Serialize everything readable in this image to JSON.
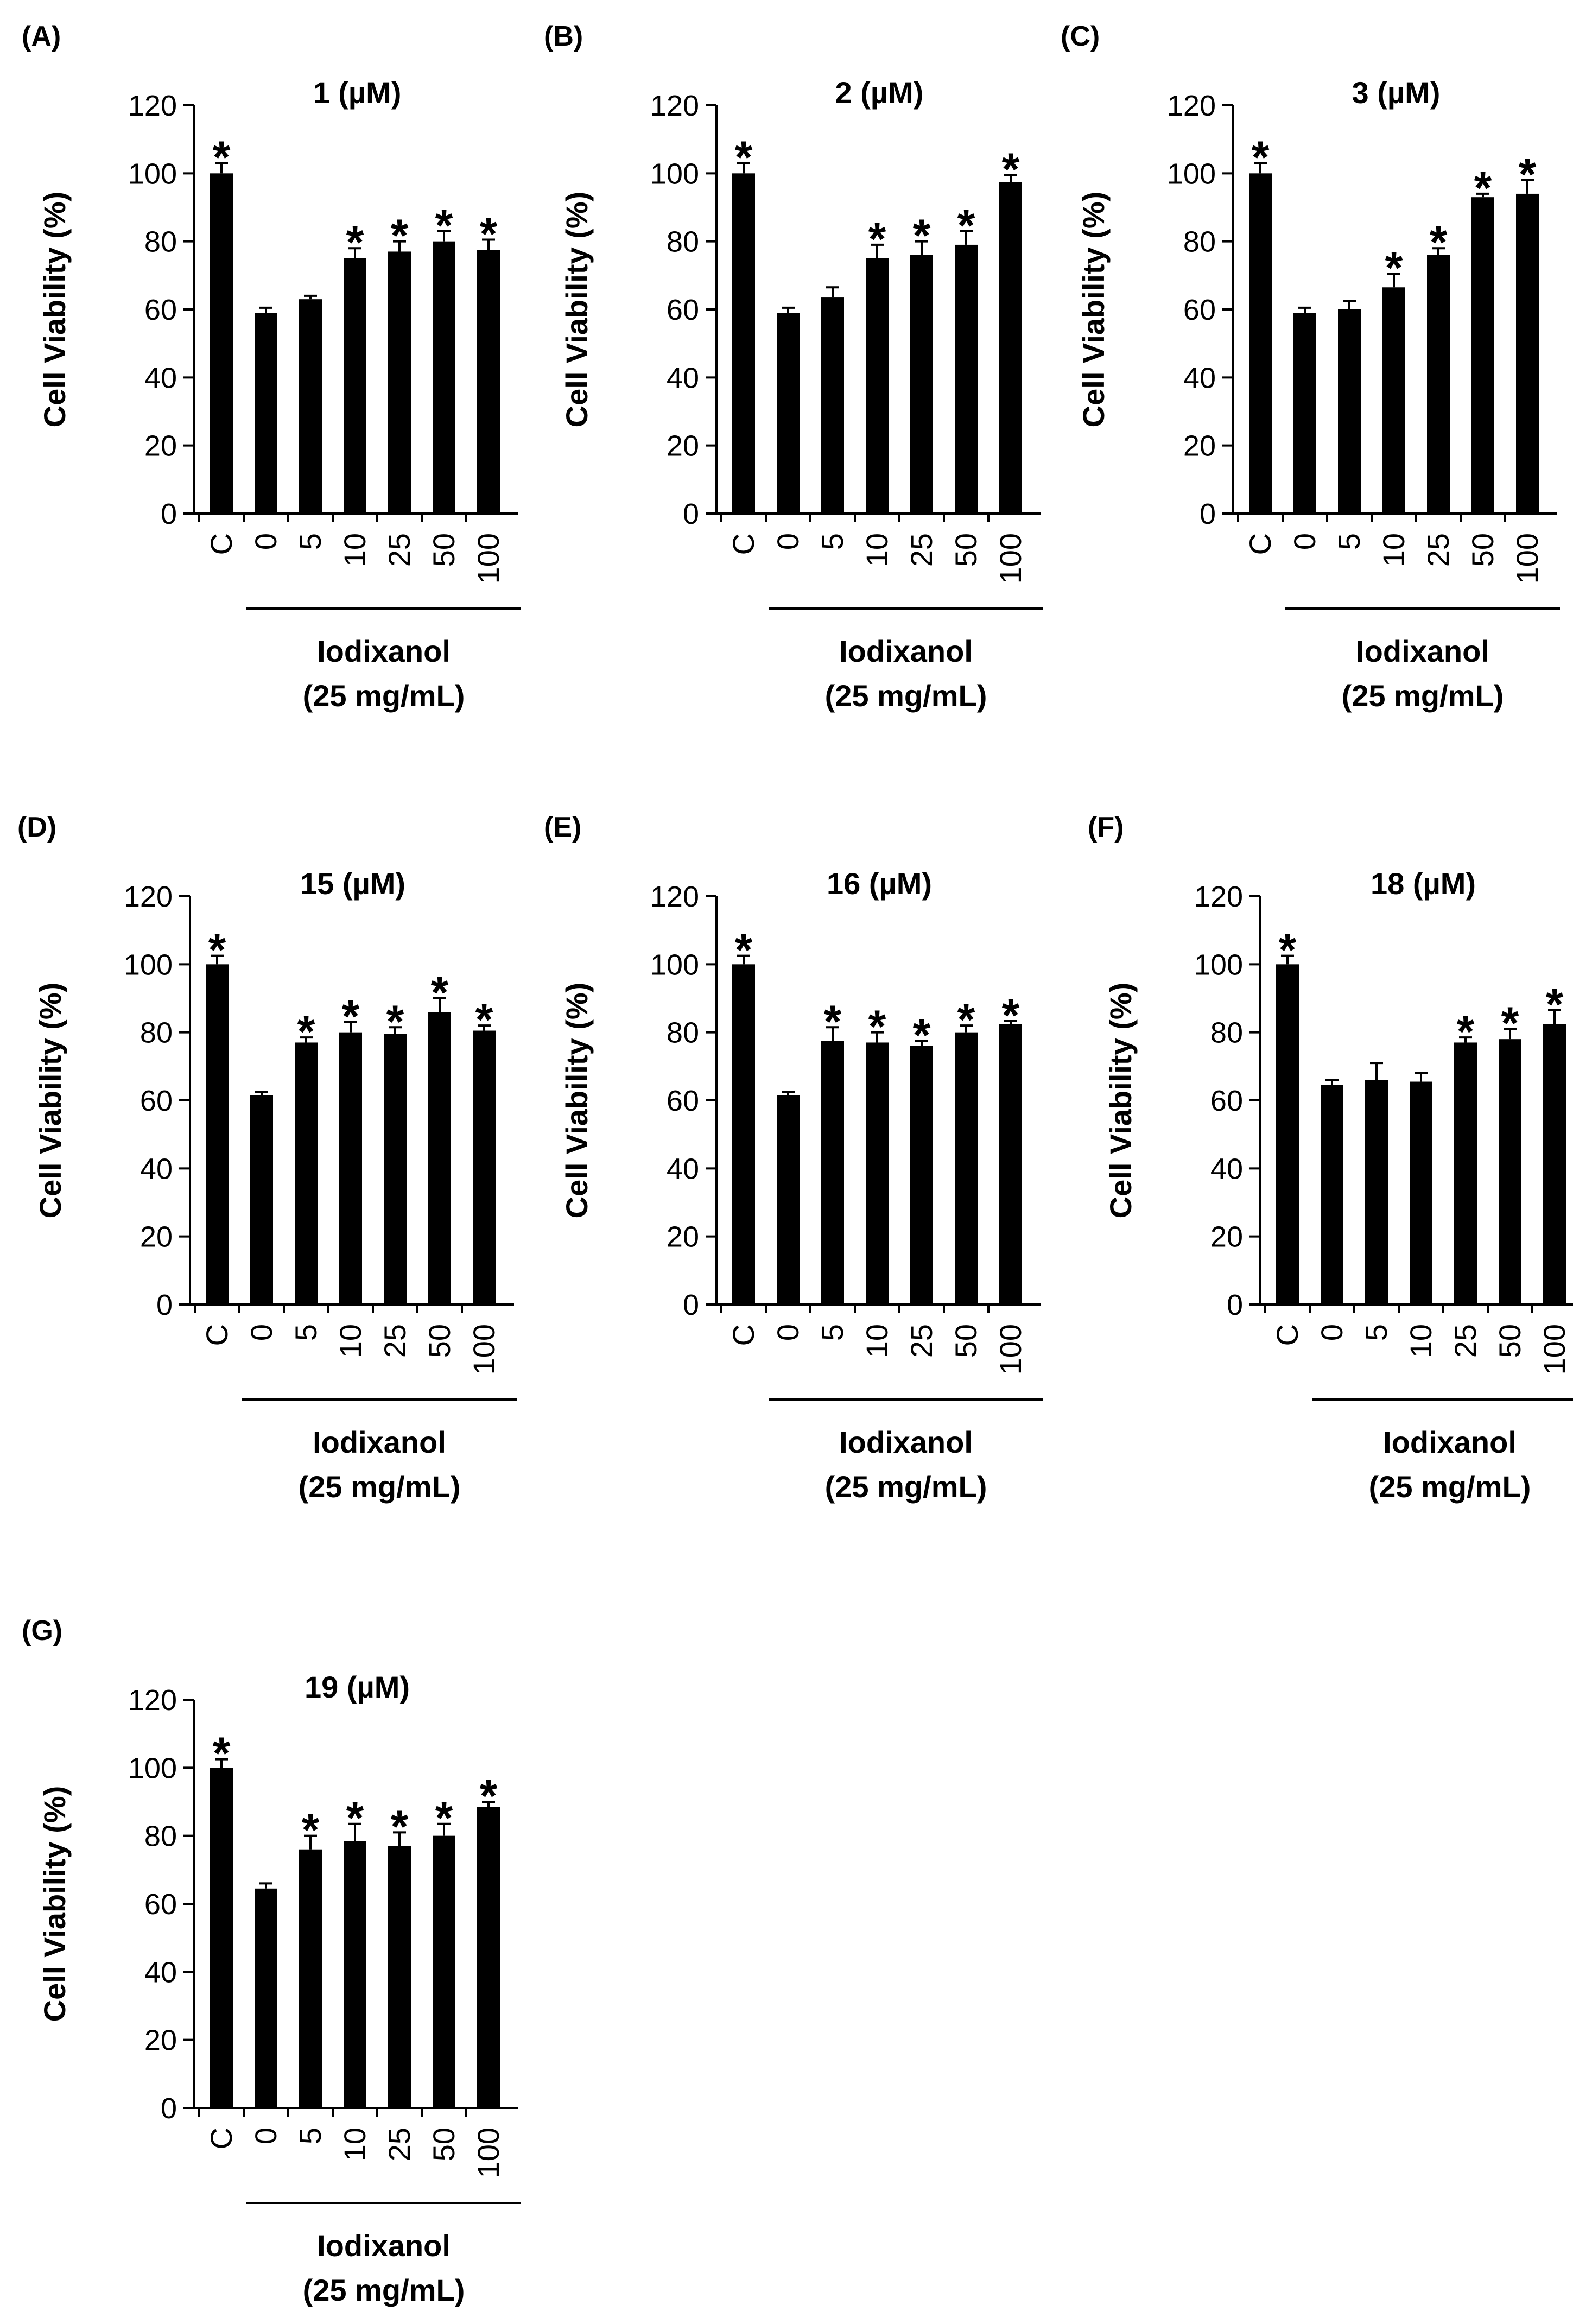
{
  "figure": {
    "tick_labels": [
      "C",
      "0",
      "5",
      "10",
      "25",
      "50",
      "100"
    ]
  },
  "chart_data": [
    {
      "panel": "(A)",
      "type": "bar",
      "title": "1 (µM)",
      "ylabel": "Cell Viability (%)",
      "xlabel": [
        "Iodixanol",
        "(25 mg/mL)"
      ],
      "ylim": [
        0,
        120
      ],
      "yticks": [
        0,
        20,
        40,
        60,
        80,
        100,
        120
      ],
      "categories": [
        "C",
        "0",
        "5",
        "10",
        "25",
        "50",
        "100"
      ],
      "values": [
        100,
        59,
        63,
        75,
        77,
        80,
        77.5
      ],
      "errors": [
        3,
        1.5,
        1,
        3,
        3,
        3,
        3
      ],
      "significant": [
        true,
        false,
        false,
        true,
        true,
        true,
        true
      ],
      "bar_color": "#000000"
    },
    {
      "panel": "(B)",
      "type": "bar",
      "title": "2 (µM)",
      "ylabel": "Cell Viability (%)",
      "xlabel": [
        "Iodixanol",
        "(25 mg/mL)"
      ],
      "ylim": [
        0,
        120
      ],
      "yticks": [
        0,
        20,
        40,
        60,
        80,
        100,
        120
      ],
      "categories": [
        "C",
        "0",
        "5",
        "10",
        "25",
        "50",
        "100"
      ],
      "values": [
        100,
        59,
        63.5,
        75,
        76,
        79,
        97.5
      ],
      "errors": [
        3,
        1.5,
        3,
        4,
        4,
        4,
        2
      ],
      "significant": [
        true,
        false,
        false,
        true,
        true,
        true,
        true
      ],
      "bar_color": "#000000"
    },
    {
      "panel": "(C)",
      "type": "bar",
      "title": "3 (µM)",
      "ylabel": "Cell Viability (%)",
      "xlabel": [
        "Iodixanol",
        "(25 mg/mL)"
      ],
      "ylim": [
        0,
        120
      ],
      "yticks": [
        0,
        20,
        40,
        60,
        80,
        100,
        120
      ],
      "categories": [
        "C",
        "0",
        "5",
        "10",
        "25",
        "50",
        "100"
      ],
      "values": [
        100,
        59,
        60,
        66.5,
        76,
        93,
        94
      ],
      "errors": [
        3,
        1.5,
        2.5,
        4,
        2,
        1,
        4
      ],
      "significant": [
        true,
        false,
        false,
        true,
        true,
        true,
        true
      ],
      "bar_color": "#000000"
    },
    {
      "panel": "(D)",
      "type": "bar",
      "title": "15 (µM)",
      "ylabel": "Cell Viability (%)",
      "xlabel": [
        "Iodixanol",
        "(25 mg/mL)"
      ],
      "ylim": [
        0,
        120
      ],
      "yticks": [
        0,
        20,
        40,
        60,
        80,
        100,
        120
      ],
      "categories": [
        "C",
        "0",
        "5",
        "10",
        "25",
        "50",
        "100"
      ],
      "values": [
        100,
        61.5,
        77,
        80,
        79.5,
        86,
        80.5
      ],
      "errors": [
        2.5,
        1,
        1.5,
        3,
        2,
        4,
        1.5
      ],
      "significant": [
        true,
        false,
        true,
        true,
        true,
        true,
        true
      ],
      "bar_color": "#000000"
    },
    {
      "panel": "(E)",
      "type": "bar",
      "title": "16 (µM)",
      "ylabel": "Cell Viability (%)",
      "xlabel": [
        "Iodixanol",
        "(25 mg/mL)"
      ],
      "ylim": [
        0,
        120
      ],
      "yticks": [
        0,
        20,
        40,
        60,
        80,
        100,
        120
      ],
      "categories": [
        "C",
        "0",
        "5",
        "10",
        "25",
        "50",
        "100"
      ],
      "values": [
        100,
        61.5,
        77.5,
        77,
        76,
        80,
        82.5
      ],
      "errors": [
        2.5,
        1,
        4,
        3,
        1.5,
        2,
        0.8
      ],
      "significant": [
        true,
        false,
        true,
        true,
        true,
        true,
        true
      ],
      "bar_color": "#000000"
    },
    {
      "panel": "(F)",
      "type": "bar",
      "title": "18 (µM)",
      "ylabel": "Cell Viability (%)",
      "xlabel": [
        "Iodixanol",
        "(25 mg/mL)"
      ],
      "ylim": [
        0,
        120
      ],
      "yticks": [
        0,
        20,
        40,
        60,
        80,
        100,
        120
      ],
      "categories": [
        "C",
        "0",
        "5",
        "10",
        "25",
        "50",
        "100"
      ],
      "values": [
        100,
        64.5,
        66,
        65.5,
        77,
        78,
        82.5
      ],
      "errors": [
        2.5,
        1.5,
        5,
        2.5,
        1.5,
        3,
        4
      ],
      "significant": [
        true,
        false,
        false,
        false,
        true,
        true,
        true
      ],
      "bar_color": "#000000"
    },
    {
      "panel": "(G)",
      "type": "bar",
      "title": "19 (µM)",
      "ylabel": "Cell Viability (%)",
      "xlabel": [
        "Iodixanol",
        "(25 mg/mL)"
      ],
      "ylim": [
        0,
        120
      ],
      "yticks": [
        0,
        20,
        40,
        60,
        80,
        100,
        120
      ],
      "categories": [
        "C",
        "0",
        "5",
        "10",
        "25",
        "50",
        "100"
      ],
      "values": [
        100,
        64.5,
        76,
        78.5,
        77,
        80,
        88.5
      ],
      "errors": [
        2.5,
        1.5,
        4,
        5,
        4,
        3.5,
        1.5
      ],
      "significant": [
        true,
        false,
        true,
        true,
        true,
        true,
        true
      ],
      "bar_color": "#000000"
    }
  ]
}
